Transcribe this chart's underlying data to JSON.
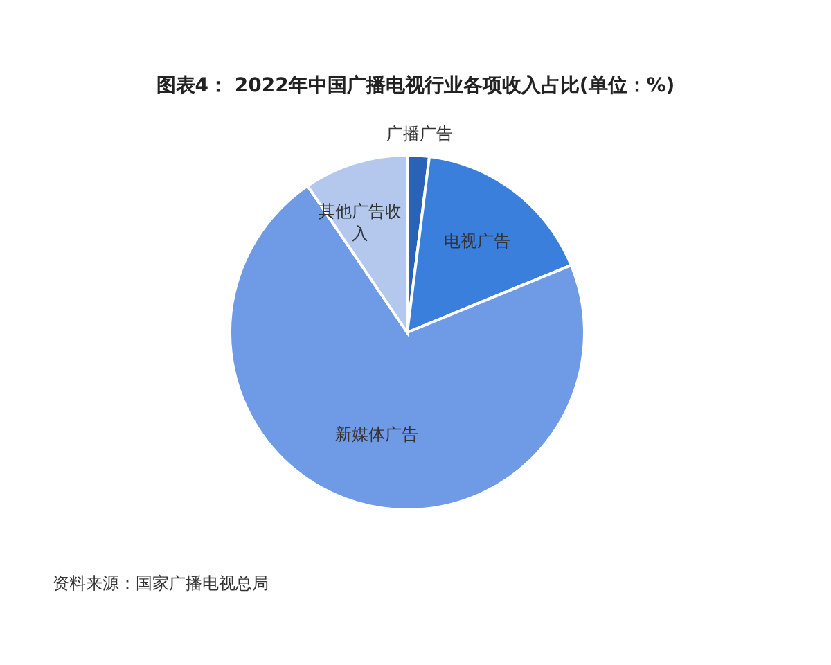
{
  "chart_data": {
    "type": "pie",
    "title": "图表4： 2022年中国广播电视行业各项收入占比(单位：%)",
    "categories": [
      "广播广告",
      "电视广告",
      "新媒体广告",
      "其他广告收入"
    ],
    "values": [
      2.0,
      16.8,
      71.7,
      9.5
    ],
    "colors": [
      "#2a62b8",
      "#3a7fdc",
      "#6f9be6",
      "#b4c8ee"
    ],
    "annotations": [
      "资料来源：国家广播电视总局"
    ]
  }
}
